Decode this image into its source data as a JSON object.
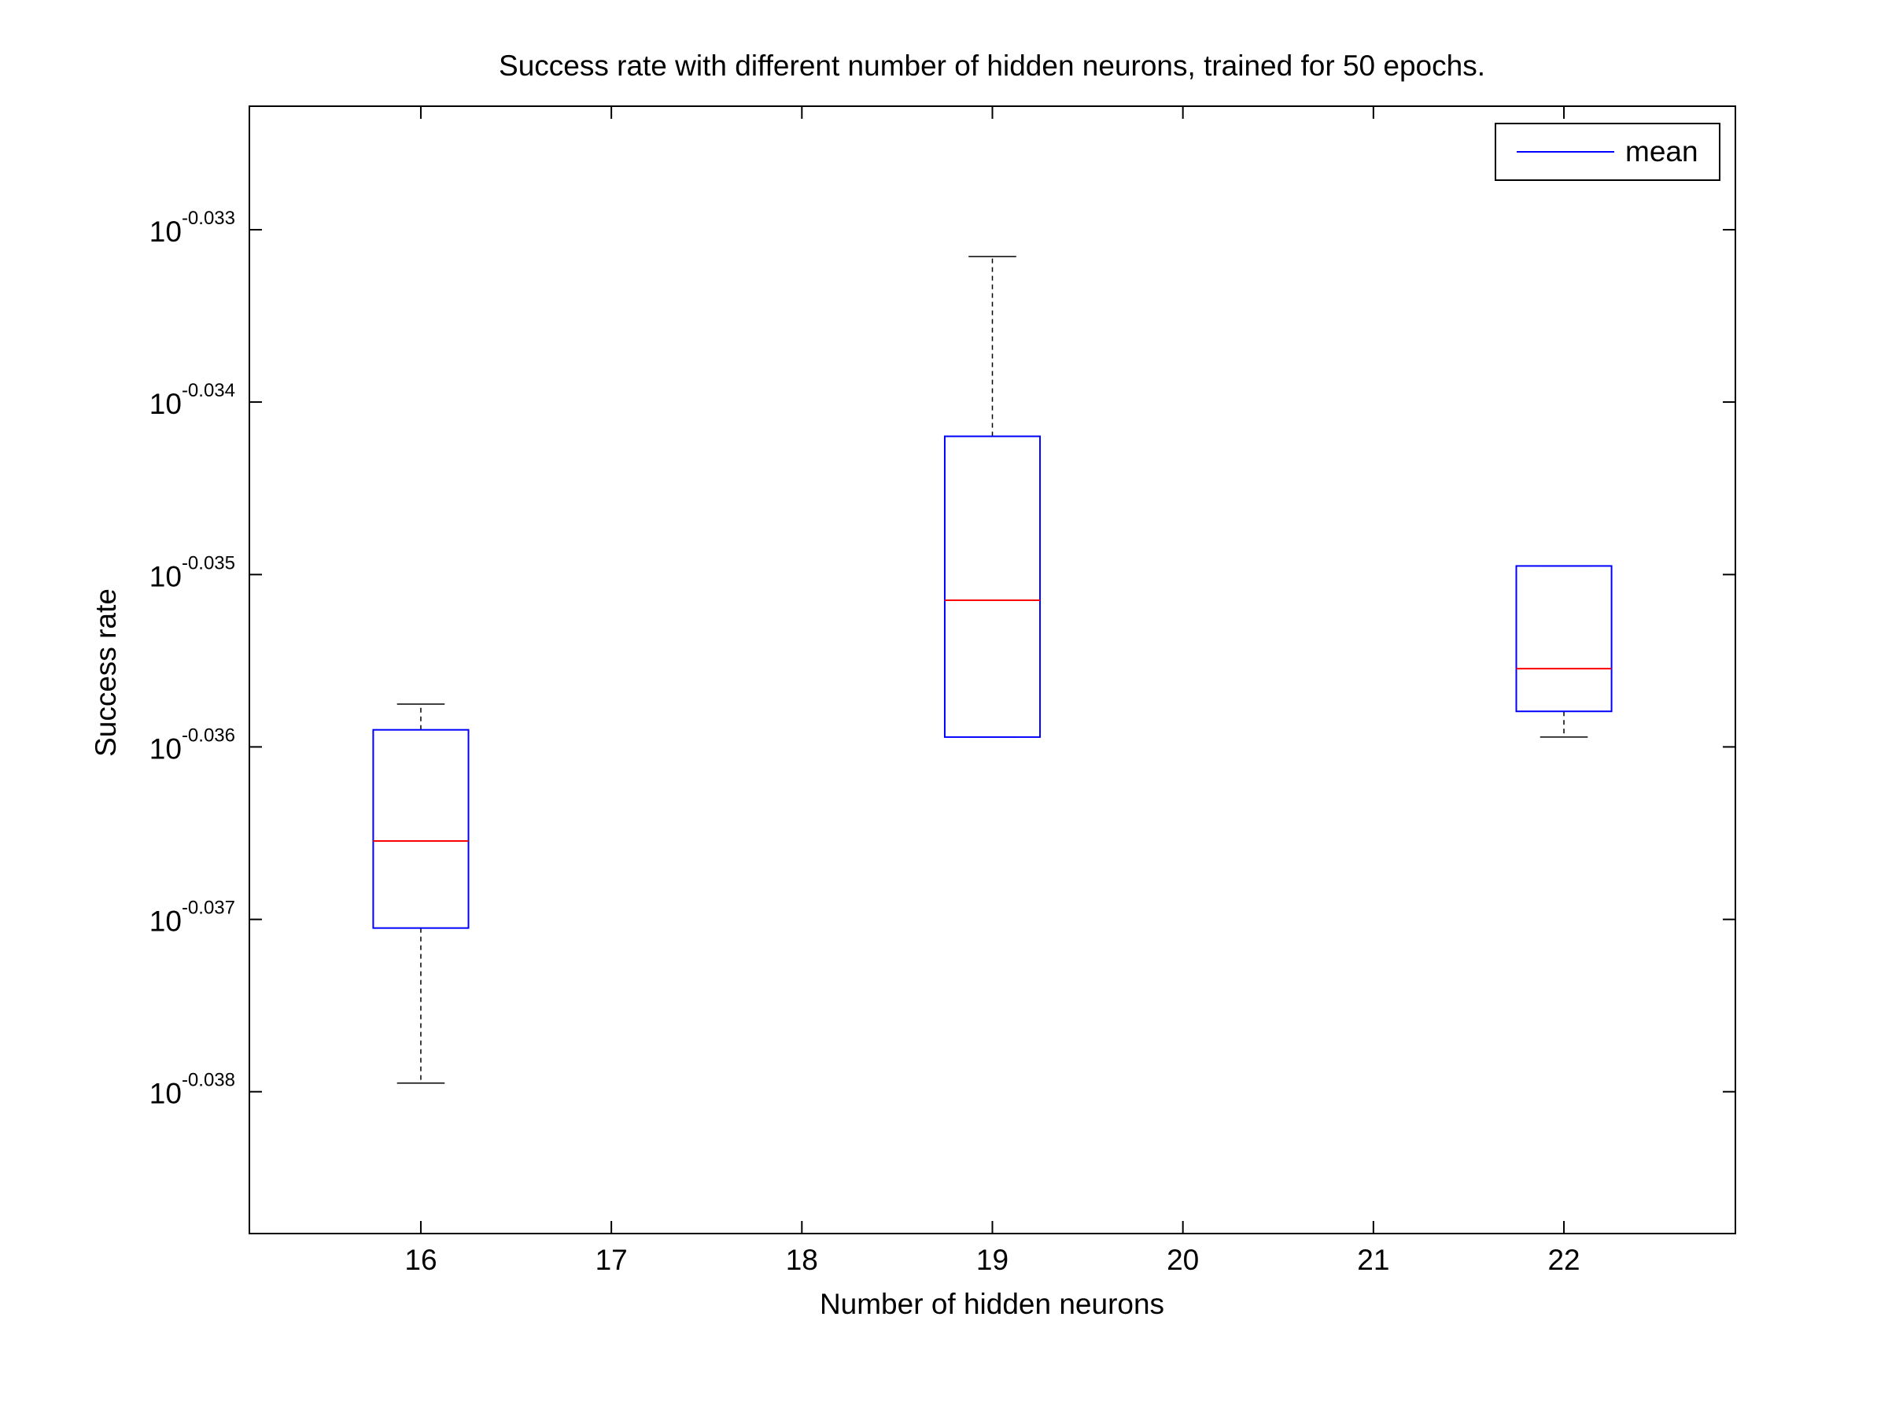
{
  "chart_data": {
    "type": "box",
    "title": "Success rate with different number of hidden neurons, trained for 50 epochs.",
    "x_label": "Number of hidden neurons",
    "y_label": "Success rate",
    "log_scale_y": true,
    "xlim": [
      15.1,
      22.9
    ],
    "xticks": [
      16,
      17,
      18,
      19,
      20,
      21,
      22
    ],
    "ylim": [
      0.914487,
      0.92836
    ],
    "yticks": [
      {
        "value": 0.92683,
        "label": [
          "10",
          "-0.033"
        ]
      },
      {
        "value": 0.924699,
        "label": [
          "10",
          "-0.034"
        ]
      },
      {
        "value": 0.922571,
        "label": [
          "10",
          "-0.035"
        ]
      },
      {
        "value": 0.92045,
        "label": [
          "10",
          "-0.036"
        ]
      },
      {
        "value": 0.918332,
        "label": [
          "10",
          "-0.037"
        ]
      },
      {
        "value": 0.916221,
        "label": [
          "10",
          "-0.038"
        ]
      }
    ],
    "x": [
      16,
      19,
      22
    ],
    "whisker_low": [
      0.916327,
      0.920571,
      0.920571
    ],
    "q1": [
      0.918226,
      0.920571,
      0.920887
    ],
    "median": [
      0.919294,
      0.922255,
      0.921413
    ],
    "q3": [
      0.92066,
      0.924276,
      0.922677
    ],
    "whisker_high": [
      0.920976,
      0.926498,
      0.922677
    ],
    "box_color": "#0000ff",
    "median_color": "#ff0000",
    "whisker_color": "#000000",
    "legend": {
      "label": "mean",
      "color": "#0000ff",
      "position": "upper right"
    }
  }
}
